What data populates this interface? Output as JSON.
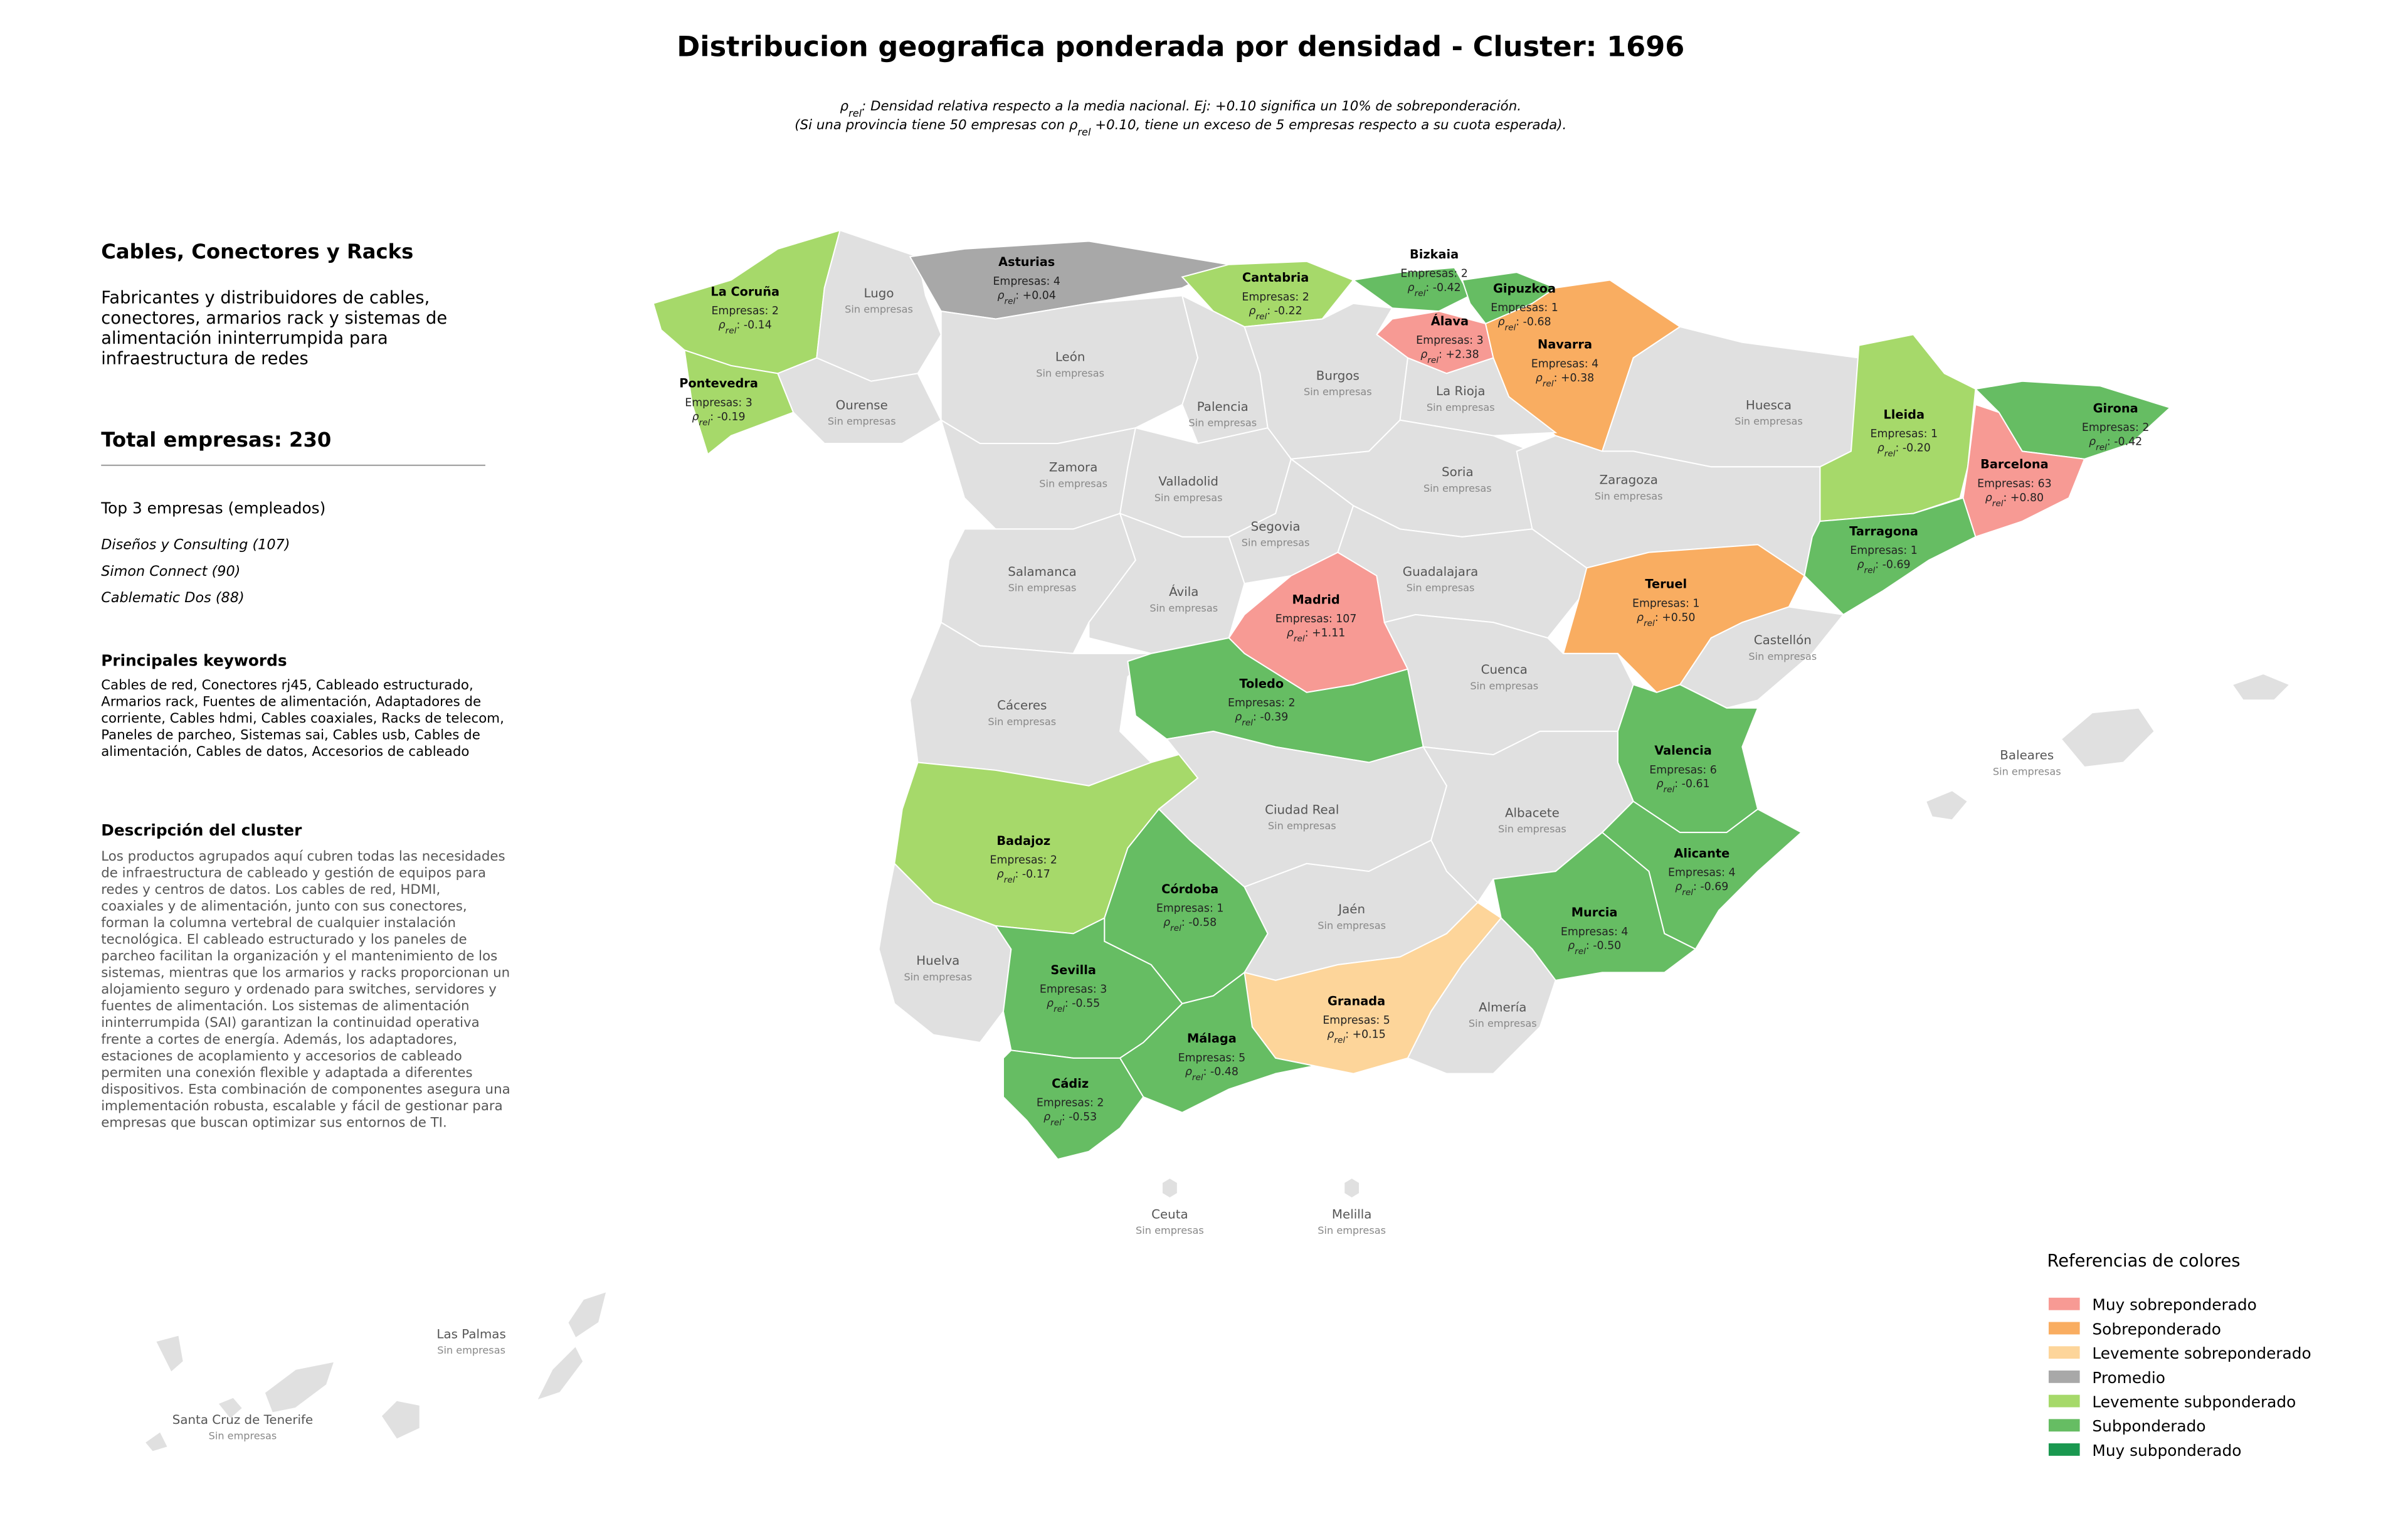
{
  "title": "Distribucion geografica ponderada por densidad - Cluster: 1696",
  "subtitle": [
    [
      {
        "text": "ρ"
      },
      {
        "sub": "rel"
      },
      {
        "text": ": Densidad relativa respecto a la media nacional. Ej: +0.10 significa un 10% de sobreponderación."
      }
    ],
    [
      {
        "text": "(Si una provincia tiene 50 empresas con ρ"
      },
      {
        "sub": "rel"
      },
      {
        "text": " +0.10, tiene un exceso de 5 empresas respecto a su cuota esperada)."
      }
    ]
  ],
  "panel": {
    "heading": "Cables, Conectores y Racks",
    "summary": [
      "Fabricantes y distribuidores de cables,",
      "conectores, armarios rack y sistemas de",
      "alimentación ininterrumpida para",
      "infraestructura de redes"
    ],
    "total": "Total empresas: 230",
    "top_title": "Top 3 empresas (empleados)",
    "top": [
      "Diseños y Consulting (107)",
      "Simon Connect (90)",
      "Cablematic Dos (88)"
    ],
    "keywords_title": "Principales keywords",
    "keywords": [
      "Cables de red, Conectores rj45, Cableado estructurado,",
      "Armarios rack, Fuentes de alimentación, Adaptadores de",
      "corriente, Cables hdmi, Cables coaxiales, Racks de telecom,",
      "Paneles de parcheo, Sistemas sai, Cables usb, Cables de",
      "alimentación, Cables de datos, Accesorios de cableado"
    ],
    "description_title": "Descripción del cluster",
    "description": [
      "Los productos agrupados aquí cubren todas las necesidades",
      "de infraestructura de cableado y gestión de equipos para",
      "redes y centros de datos. Los cables de red, HDMI,",
      "coaxiales y de alimentación, junto con sus conectores,",
      "forman la columna vertebral de cualquier instalación",
      "tecnológica. El cableado estructurado y los paneles de",
      "parcheo facilitan la organización y el mantenimiento de los",
      "sistemas, mientras que los armarios y racks proporcionan un",
      "alojamiento seguro y ordenado para switches, servidores y",
      "fuentes de alimentación. Los sistemas de alimentación",
      "ininterrumpida (SAI) garantizan la continuidad operativa",
      "frente a cortes de energía. Además, los adaptadores,",
      "estaciones de acoplamiento y accesorios de cableado",
      "permiten una conexión flexible y adaptada a diferentes",
      "dispositivos. Esta combinación de componentes asegura una",
      "implementación robusta, escalable y fácil de gestionar para",
      "empresas que buscan optimizar sus entornos de TI."
    ]
  },
  "density_symbol": "ρ",
  "density_subscript": "rel",
  "density_separator": ": ",
  "no_data": "Sin empresas",
  "no_data_color": "#e0e0e0",
  "provinces": [
    {
      "name": "La Coruña",
      "count": "Empresas: 2",
      "density": "-0.14",
      "color": "#a6d96a"
    },
    {
      "name": "Lugo"
    },
    {
      "name": "Asturias",
      "count": "Empresas: 4",
      "density": "+0.04",
      "color": "#a8a8a8"
    },
    {
      "name": "Cantabria",
      "count": "Empresas: 2",
      "density": "-0.22",
      "color": "#a6d96a"
    },
    {
      "name": "Bizkaia",
      "count": "Empresas: 2",
      "density": "-0.42",
      "color": "#66bd63"
    },
    {
      "name": "Gipuzkoa",
      "count": "Empresas: 1",
      "density": "-0.68",
      "color": "#66bd63"
    },
    {
      "name": "Álava",
      "count": "Empresas: 3",
      "density": "+2.38",
      "color": "#f79a94"
    },
    {
      "name": "Navarra",
      "count": "Empresas: 4",
      "density": "+0.38",
      "color": "#f9ad61"
    },
    {
      "name": "Pontevedra",
      "count": "Empresas: 3",
      "density": "-0.19",
      "color": "#a6d96a"
    },
    {
      "name": "Ourense"
    },
    {
      "name": "León"
    },
    {
      "name": "Palencia"
    },
    {
      "name": "Burgos"
    },
    {
      "name": "La Rioja"
    },
    {
      "name": "Huesca"
    },
    {
      "name": "Lleida",
      "count": "Empresas: 1",
      "density": "-0.20",
      "color": "#a6d96a"
    },
    {
      "name": "Girona",
      "count": "Empresas: 2",
      "density": "-0.42",
      "color": "#66bd63"
    },
    {
      "name": "Barcelona",
      "count": "Empresas: 63",
      "density": "+0.80",
      "color": "#f79a94"
    },
    {
      "name": "Zamora"
    },
    {
      "name": "Valladolid"
    },
    {
      "name": "Soria"
    },
    {
      "name": "Zaragoza"
    },
    {
      "name": "Tarragona",
      "count": "Empresas: 1",
      "density": "-0.69",
      "color": "#66bd63"
    },
    {
      "name": "Segovia"
    },
    {
      "name": "Salamanca"
    },
    {
      "name": "Ávila"
    },
    {
      "name": "Madrid",
      "count": "Empresas: 107",
      "density": "+1.11",
      "color": "#f79a94"
    },
    {
      "name": "Guadalajara"
    },
    {
      "name": "Teruel",
      "count": "Empresas: 1",
      "density": "+0.50",
      "color": "#f9ad61"
    },
    {
      "name": "Castellón"
    },
    {
      "name": "Cáceres"
    },
    {
      "name": "Toledo",
      "count": "Empresas: 2",
      "density": "-0.39",
      "color": "#66bd63"
    },
    {
      "name": "Cuenca"
    },
    {
      "name": "Valencia",
      "count": "Empresas: 6",
      "density": "-0.61",
      "color": "#66bd63"
    },
    {
      "name": "Baleares"
    },
    {
      "name": "Badajoz",
      "count": "Empresas: 2",
      "density": "-0.17",
      "color": "#a6d96a"
    },
    {
      "name": "Ciudad Real"
    },
    {
      "name": "Albacete"
    },
    {
      "name": "Alicante",
      "count": "Empresas: 4",
      "density": "-0.69",
      "color": "#66bd63"
    },
    {
      "name": "Murcia",
      "count": "Empresas: 4",
      "density": "-0.50",
      "color": "#66bd63"
    },
    {
      "name": "Huelva"
    },
    {
      "name": "Córdoba",
      "count": "Empresas: 1",
      "density": "-0.58",
      "color": "#66bd63"
    },
    {
      "name": "Jaén"
    },
    {
      "name": "Sevilla",
      "count": "Empresas: 3",
      "density": "-0.55",
      "color": "#66bd63"
    },
    {
      "name": "Granada",
      "count": "Empresas: 5",
      "density": "+0.15",
      "color": "#fdd59a"
    },
    {
      "name": "Almería"
    },
    {
      "name": "Málaga",
      "count": "Empresas: 5",
      "density": "-0.48",
      "color": "#66bd63"
    },
    {
      "name": "Cádiz",
      "count": "Empresas: 2",
      "density": "-0.53",
      "color": "#66bd63"
    },
    {
      "name": "Ceuta"
    },
    {
      "name": "Melilla"
    },
    {
      "name": "Las Palmas"
    },
    {
      "name": "Santa Cruz de Tenerife"
    }
  ],
  "legend": {
    "title": "Referencias de colores",
    "items": [
      {
        "label": "Muy sobreponderado",
        "color": "#f79a94"
      },
      {
        "label": "Sobreponderado",
        "color": "#f9ad61"
      },
      {
        "label": "Levemente sobreponderado",
        "color": "#fdd59a"
      },
      {
        "label": "Promedio",
        "color": "#a8a8a8"
      },
      {
        "label": "Levemente subponderado",
        "color": "#a6d96a"
      },
      {
        "label": "Subponderado",
        "color": "#66bd63"
      },
      {
        "label": "Muy subponderado",
        "color": "#1a9850"
      }
    ]
  }
}
